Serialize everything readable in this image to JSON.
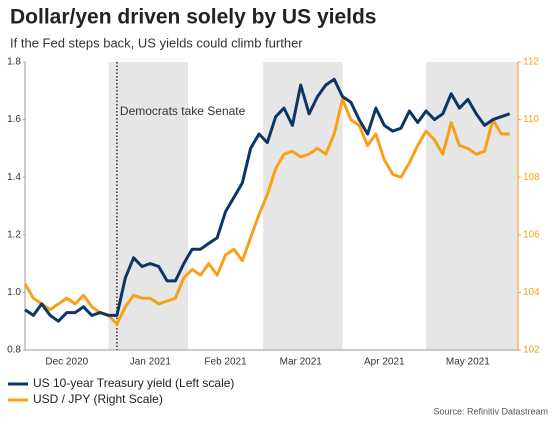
{
  "chart_data": {
    "type": "line",
    "title": "Dollar/yen driven solely by US yields",
    "subtitle": "If the Fed steps back, US yields could climb further",
    "source": "Source: Refinitiv Datastream",
    "categories": [
      null,
      null,
      null,
      null,
      null,
      "Dec 2020",
      null,
      null,
      null,
      null,
      null,
      null,
      null,
      null,
      null,
      "Jan 2021",
      null,
      null,
      null,
      null,
      null,
      null,
      null,
      null,
      "Feb 2021",
      null,
      null,
      null,
      null,
      null,
      null,
      null,
      null,
      "Mar 2021",
      null,
      null,
      null,
      null,
      null,
      null,
      null,
      null,
      null,
      "Apr 2021",
      null,
      null,
      null,
      null,
      null,
      null,
      null,
      null,
      null,
      "May 2021",
      null,
      null,
      null,
      null,
      null,
      null
    ],
    "alternate_shading": true,
    "shade_color": "#e6e6e6",
    "annotation": {
      "text": "Democrats take Senate",
      "index": 11
    },
    "series": [
      {
        "name": "US 10-year Treasury yield (Left scale)",
        "color": "#0d3566",
        "axis": "y",
        "values": [
          0.94,
          0.92,
          0.96,
          0.92,
          0.9,
          0.93,
          0.93,
          0.95,
          0.92,
          0.93,
          0.92,
          0.92,
          1.05,
          1.12,
          1.09,
          1.1,
          1.09,
          1.04,
          1.04,
          1.1,
          1.15,
          1.15,
          1.17,
          1.19,
          1.28,
          1.33,
          1.38,
          1.5,
          1.55,
          1.52,
          1.61,
          1.64,
          1.58,
          1.72,
          1.62,
          1.68,
          1.72,
          1.74,
          1.68,
          1.66,
          1.6,
          1.55,
          1.64,
          1.58,
          1.56,
          1.57,
          1.63,
          1.59,
          1.63,
          1.6,
          1.62,
          1.69,
          1.64,
          1.67,
          1.62,
          1.58,
          1.6,
          1.61,
          1.62,
          null
        ]
      },
      {
        "name": "USD / JPY (Right Scale)",
        "color": "#f7a11a",
        "axis": "y2",
        "values": [
          104.3,
          103.8,
          103.6,
          103.4,
          103.6,
          103.8,
          103.6,
          103.9,
          103.5,
          103.3,
          103.2,
          102.9,
          103.5,
          103.9,
          103.8,
          103.8,
          103.6,
          103.7,
          103.8,
          104.5,
          104.8,
          104.6,
          105.0,
          104.6,
          105.3,
          105.5,
          105.1,
          105.9,
          106.7,
          107.4,
          108.3,
          108.8,
          108.9,
          108.7,
          108.8,
          109.0,
          108.8,
          109.5,
          110.7,
          110.0,
          109.8,
          109.1,
          109.5,
          108.6,
          108.1,
          108.0,
          108.5,
          109.1,
          109.6,
          109.3,
          108.8,
          109.9,
          109.1,
          109.0,
          108.8,
          108.9,
          110.0,
          109.5,
          109.5,
          null
        ]
      }
    ],
    "ylim": [
      0.8,
      1.8
    ],
    "yticks": [
      0.8,
      {
        "value": 1,
        "label": "1.0"
      },
      1.2,
      1.4,
      1.6,
      1.8
    ],
    "y2lim": [
      102,
      112
    ],
    "y2ticks": [
      102,
      104,
      106,
      108,
      110,
      112
    ]
  }
}
